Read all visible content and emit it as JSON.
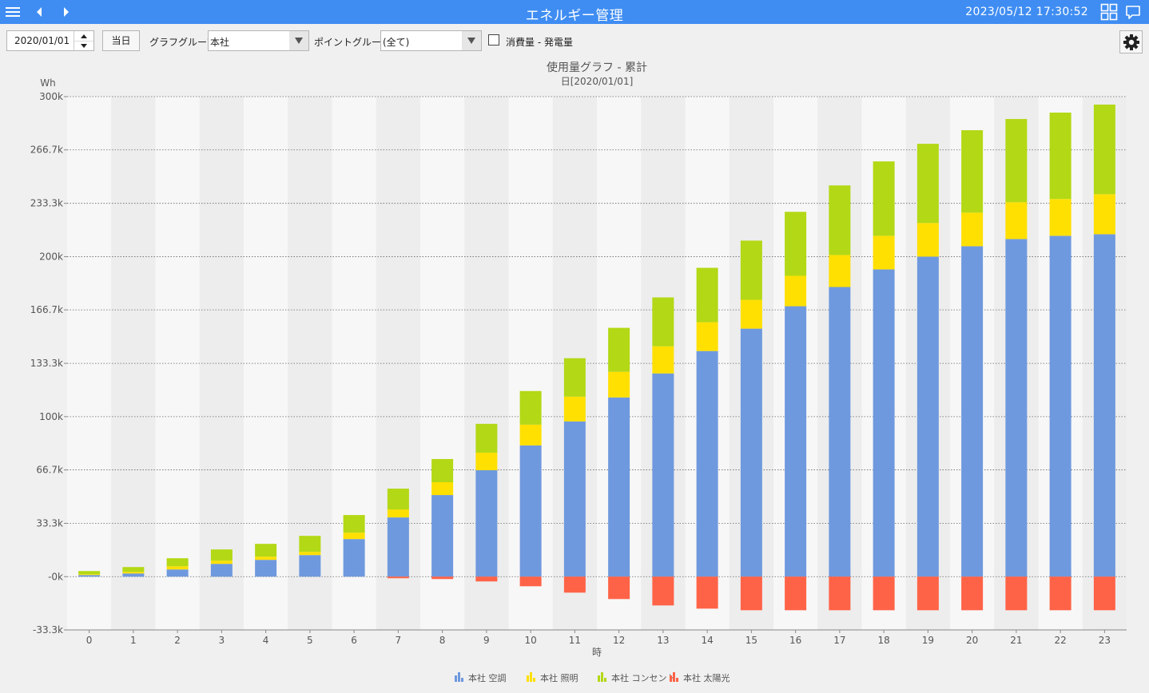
{
  "app": {
    "title": "エネルギー管理",
    "datetime": "2023/05/12 17:30:52"
  },
  "icons": {
    "menu": "hamburger-menu-icon",
    "back": "chevron-left-icon",
    "forward": "chevron-right-icon",
    "layout": "grid-icon",
    "message": "speech-bubble-icon",
    "settings": "gear-icon",
    "spin_up": "caret-up-icon",
    "spin_down": "caret-down-icon",
    "dropdown": "caret-down-icon"
  },
  "toolbar": {
    "date_value": "2020/01/01",
    "today_label": "当日",
    "graph_group_label": "グラフグループ:",
    "graph_group_value": "本社",
    "point_group_label": "ポイントグループ:",
    "point_group_value": "(全て)",
    "checkbox_label": "消費量 - 発電量",
    "checkbox_checked": false
  },
  "chart_data": {
    "type": "bar",
    "stacked": true,
    "title": "使用量グラフ - 累計",
    "subtitle": "日[2020/01/01]",
    "ylabel": "Wh",
    "xlabel": "時",
    "ylim": [
      -33300,
      300000
    ],
    "yticks": [
      300000,
      266700,
      233300,
      200000,
      166700,
      133300,
      100000,
      66700,
      33300,
      0,
      -33300
    ],
    "ytick_labels": [
      "300k",
      "266.7k",
      "233.3k",
      "200k",
      "166.7k",
      "133.3k",
      "100k",
      "66.7k",
      "33.3k",
      "-0k",
      "-33.3k"
    ],
    "categories": [
      "0",
      "1",
      "2",
      "3",
      "4",
      "5",
      "6",
      "7",
      "8",
      "9",
      "10",
      "11",
      "12",
      "13",
      "14",
      "15",
      "16",
      "17",
      "18",
      "19",
      "20",
      "21",
      "22",
      "23"
    ],
    "grid": "horizontal-dotted",
    "legend_position": "bottom-center",
    "series": [
      {
        "name": "本社 空調",
        "color": "#6f99de",
        "values": [
          1000,
          2000,
          4500,
          8000,
          10500,
          13500,
          23500,
          37000,
          51000,
          66500,
          82000,
          97000,
          112000,
          127000,
          141000,
          155000,
          169000,
          181000,
          192000,
          200000,
          206500,
          211000,
          213000,
          214000
        ]
      },
      {
        "name": "本社 照明",
        "color": "#ffe000",
        "values": [
          500,
          1000,
          2000,
          2000,
          2000,
          2000,
          4000,
          5000,
          8000,
          11000,
          13000,
          15500,
          16000,
          17000,
          18000,
          18000,
          19000,
          20000,
          21000,
          21000,
          21000,
          23000,
          23000,
          25000
        ]
      },
      {
        "name": "本社 コンセント",
        "color": "#b3d815",
        "values": [
          2000,
          3000,
          5000,
          7000,
          8000,
          10000,
          11000,
          13000,
          14500,
          18000,
          21000,
          24000,
          27500,
          30500,
          34000,
          37000,
          40000,
          43500,
          46500,
          49500,
          51500,
          52000,
          54000,
          56000
        ]
      },
      {
        "name": "本社 太陽光",
        "color": "#ff6347",
        "values": [
          0,
          0,
          0,
          0,
          0,
          0,
          0,
          -1000,
          -1500,
          -3000,
          -6000,
          -10000,
          -14000,
          -18000,
          -20000,
          -21000,
          -21000,
          -21000,
          -21000,
          -21000,
          -21000,
          -21000,
          -21000,
          -21000
        ]
      }
    ]
  }
}
